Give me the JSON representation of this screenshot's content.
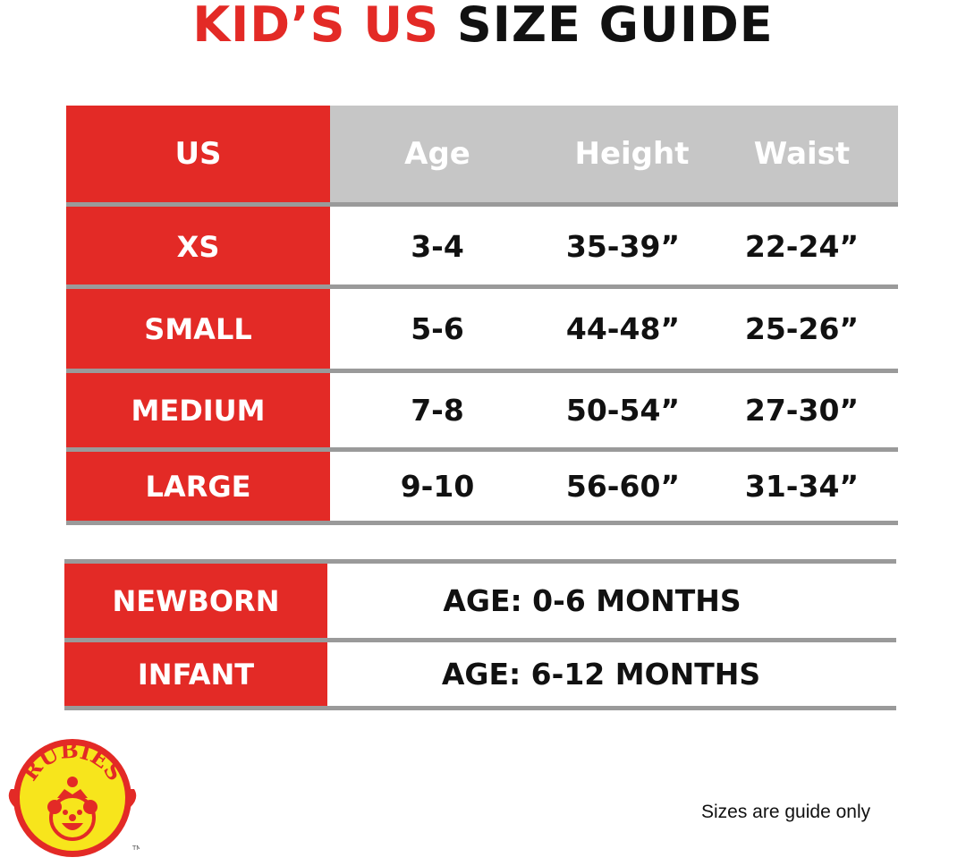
{
  "title": {
    "part1": "KID’S US",
    "part2": "SIZE GUIDE"
  },
  "colors": {
    "accent": "#e32a26",
    "header_bg": "#c6c6c6",
    "divider": "#9a9a9a"
  },
  "size_table": {
    "headers": [
      "US",
      "Age",
      "Height",
      "Waist"
    ],
    "rows": [
      {
        "us": "XS",
        "age": "3-4",
        "height": "35-39”",
        "waist": "22-24”"
      },
      {
        "us": "SMALL",
        "age": "5-6",
        "height": "44-48”",
        "waist": "25-26”"
      },
      {
        "us": "MEDIUM",
        "age": "7-8",
        "height": "50-54”",
        "waist": "27-30”"
      },
      {
        "us": "LARGE",
        "age": "9-10",
        "height": "56-60”",
        "waist": "31-34”"
      }
    ]
  },
  "baby_table": {
    "rows": [
      {
        "label": "NEWBORN",
        "value": "AGE: 0-6 MONTHS"
      },
      {
        "label": "INFANT",
        "value": "AGE: 6-12 MONTHS"
      }
    ]
  },
  "logo": {
    "text": "RUBIES",
    "mark": "TM"
  },
  "note": "Sizes are guide only"
}
